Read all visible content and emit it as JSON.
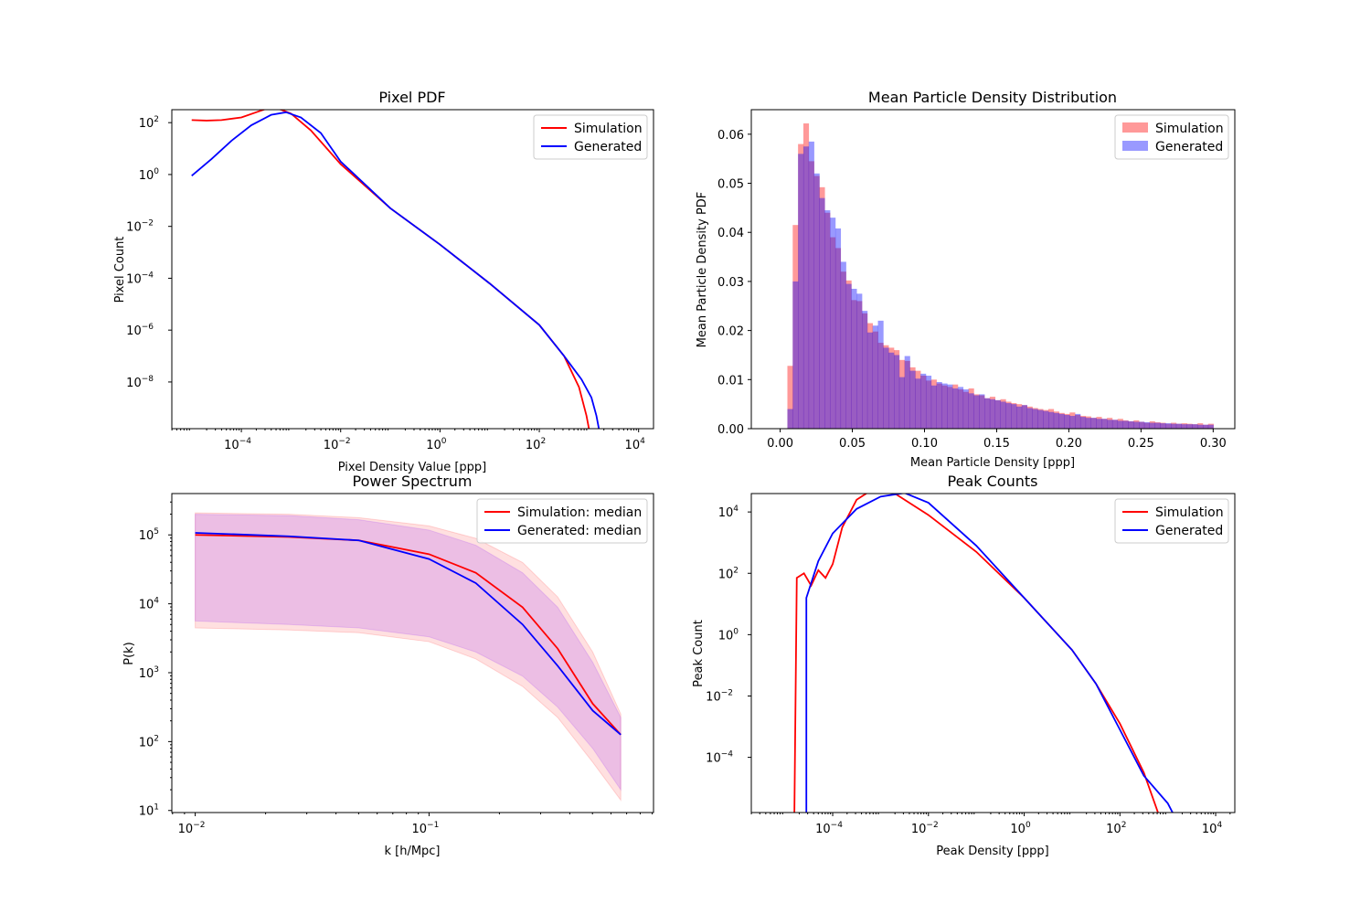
{
  "chart_data": [
    {
      "type": "line",
      "title": "Pixel PDF",
      "xlabel": "Pixel Density Value [ppp]",
      "ylabel": "Pixel Count",
      "xscale": "log",
      "yscale": "log",
      "xlim_log10": [
        -5.4,
        4.3
      ],
      "ylim_log10": [
        -9.8,
        2.5
      ],
      "xticks": [
        {
          "e": -4,
          "label": "10",
          "sup": "−4"
        },
        {
          "e": -2,
          "label": "10",
          "sup": "−2"
        },
        {
          "e": 0,
          "label": "10",
          "sup": "0"
        },
        {
          "e": 2,
          "label": "10",
          "sup": "2"
        },
        {
          "e": 4,
          "label": "10",
          "sup": "4"
        }
      ],
      "yticks": [
        {
          "e": -8,
          "label": "10",
          "sup": "−8"
        },
        {
          "e": -6,
          "label": "10",
          "sup": "−6"
        },
        {
          "e": -4,
          "label": "10",
          "sup": "−4"
        },
        {
          "e": -2,
          "label": "10",
          "sup": "−2"
        },
        {
          "e": 0,
          "label": "10",
          "sup": "0"
        },
        {
          "e": 2,
          "label": "10",
          "sup": "2"
        }
      ],
      "legend_position": "upper-right",
      "series": [
        {
          "name": "Simulation",
          "color": "#ff0000",
          "points_log10": [
            [
              -5.0,
              2.1
            ],
            [
              -4.7,
              2.08
            ],
            [
              -4.4,
              2.1
            ],
            [
              -4.0,
              2.2
            ],
            [
              -3.7,
              2.4
            ],
            [
              -3.4,
              2.6
            ],
            [
              -3.2,
              2.5
            ],
            [
              -3.0,
              2.35
            ],
            [
              -2.6,
              1.7
            ],
            [
              -2.0,
              0.4
            ],
            [
              -1.0,
              -1.3
            ],
            [
              0.0,
              -2.7
            ],
            [
              1.0,
              -4.2
            ],
            [
              2.0,
              -5.8
            ],
            [
              2.5,
              -7.0
            ],
            [
              2.8,
              -8.2
            ],
            [
              2.95,
              -9.3
            ],
            [
              3.0,
              -9.8
            ]
          ]
        },
        {
          "name": "Generated",
          "color": "#0000ff",
          "points_log10": [
            [
              -5.0,
              -0.05
            ],
            [
              -4.6,
              0.6
            ],
            [
              -4.2,
              1.3
            ],
            [
              -3.8,
              1.9
            ],
            [
              -3.4,
              2.3
            ],
            [
              -3.1,
              2.4
            ],
            [
              -2.8,
              2.2
            ],
            [
              -2.4,
              1.6
            ],
            [
              -2.0,
              0.5
            ],
            [
              -1.0,
              -1.3
            ],
            [
              0.0,
              -2.7
            ],
            [
              1.0,
              -4.2
            ],
            [
              2.0,
              -5.8
            ],
            [
              2.5,
              -7.0
            ],
            [
              2.85,
              -7.9
            ],
            [
              3.05,
              -8.6
            ],
            [
              3.15,
              -9.3
            ],
            [
              3.2,
              -9.8
            ]
          ]
        }
      ]
    },
    {
      "type": "bar",
      "title": "Mean Particle Density Distribution",
      "xlabel": "Mean Particle Density [ppp]",
      "ylabel": "Mean Particle Density PDF",
      "xlim": [
        -0.02,
        0.315
      ],
      "ylim": [
        0,
        0.065
      ],
      "xticks": [
        "0.00",
        "0.05",
        "0.10",
        "0.15",
        "0.20",
        "0.25",
        "0.30"
      ],
      "yticks": [
        "0.00",
        "0.01",
        "0.02",
        "0.03",
        "0.04",
        "0.05",
        "0.06"
      ],
      "bin_start": 0.005,
      "bin_width": 0.00369,
      "legend_position": "upper-right",
      "series": [
        {
          "name": "Simulation",
          "color": "#ff0000",
          "alpha": 0.4,
          "values": [
            0.0128,
            0.0415,
            0.058,
            0.0622,
            0.0545,
            0.0515,
            0.0492,
            0.044,
            0.039,
            0.0368,
            0.032,
            0.0302,
            0.0262,
            0.026,
            0.0235,
            0.0215,
            0.0198,
            0.0175,
            0.017,
            0.0165,
            0.016,
            0.014,
            0.0138,
            0.0125,
            0.0118,
            0.0108,
            0.0098,
            0.01,
            0.0092,
            0.0088,
            0.0085,
            0.009,
            0.008,
            0.0075,
            0.0082,
            0.007,
            0.0068,
            0.0062,
            0.0065,
            0.0058,
            0.006,
            0.0055,
            0.0052,
            0.005,
            0.0048,
            0.0045,
            0.0042,
            0.004,
            0.0038,
            0.004,
            0.0035,
            0.0032,
            0.003,
            0.0033,
            0.0028,
            0.0026,
            0.0025,
            0.0022,
            0.0024,
            0.002,
            0.0022,
            0.0018,
            0.002,
            0.0017,
            0.0015,
            0.0017,
            0.0014,
            0.0012,
            0.0015,
            0.0013,
            0.0012,
            0.001,
            0.0012,
            0.001,
            0.0011,
            0.001,
            0.0009,
            0.0011,
            0.0008,
            0.001
          ]
        },
        {
          "name": "Generated",
          "color": "#0000ff",
          "alpha": 0.4,
          "values": [
            0.004,
            0.03,
            0.056,
            0.0575,
            0.0585,
            0.052,
            0.047,
            0.0445,
            0.043,
            0.0408,
            0.034,
            0.0295,
            0.0285,
            0.0275,
            0.024,
            0.0196,
            0.021,
            0.022,
            0.0165,
            0.0155,
            0.015,
            0.0105,
            0.0148,
            0.0118,
            0.0102,
            0.0112,
            0.0108,
            0.0088,
            0.0095,
            0.0092,
            0.009,
            0.0082,
            0.0085,
            0.008,
            0.0072,
            0.0068,
            0.007,
            0.0062,
            0.006,
            0.0058,
            0.0055,
            0.0052,
            0.005,
            0.0045,
            0.0048,
            0.0042,
            0.004,
            0.0038,
            0.0036,
            0.0034,
            0.0032,
            0.003,
            0.0028,
            0.0026,
            0.003,
            0.0024,
            0.0022,
            0.0022,
            0.002,
            0.002,
            0.0018,
            0.0018,
            0.0016,
            0.0016,
            0.0015,
            0.0014,
            0.0014,
            0.0013,
            0.0012,
            0.0012,
            0.0011,
            0.0011,
            0.001,
            0.001,
            0.0009,
            0.0009,
            0.0009,
            0.0008,
            0.0008,
            0.0008
          ]
        }
      ]
    },
    {
      "type": "line",
      "title": "Power Spectrum",
      "xlabel": "k [h/Mpc]",
      "ylabel": "P(k)",
      "xscale": "log",
      "yscale": "log",
      "xlim_log10": [
        -2.1,
        -0.04
      ],
      "ylim_log10": [
        0.97,
        5.6
      ],
      "xticks": [
        {
          "e": -2,
          "label": "10",
          "sup": "−2"
        },
        {
          "e": -1,
          "label": "10",
          "sup": "−1"
        }
      ],
      "yticks": [
        {
          "e": 1,
          "label": "10",
          "sup": "1"
        },
        {
          "e": 2,
          "label": "10",
          "sup": "2"
        },
        {
          "e": 3,
          "label": "10",
          "sup": "3"
        },
        {
          "e": 4,
          "label": "10",
          "sup": "4"
        },
        {
          "e": 5,
          "label": "10",
          "sup": "5"
        }
      ],
      "legend_position": "upper-right",
      "bands": [
        {
          "color": "#ff0000",
          "alpha": 0.12,
          "upper_log10": [
            [
              -2.0,
              5.32
            ],
            [
              -1.6,
              5.3
            ],
            [
              -1.3,
              5.25
            ],
            [
              -1.0,
              5.13
            ],
            [
              -0.8,
              4.95
            ],
            [
              -0.6,
              4.6
            ],
            [
              -0.45,
              4.1
            ],
            [
              -0.3,
              3.3
            ],
            [
              -0.18,
              2.4
            ]
          ],
          "lower_log10": [
            [
              -2.0,
              3.65
            ],
            [
              -1.6,
              3.62
            ],
            [
              -1.3,
              3.58
            ],
            [
              -1.0,
              3.45
            ],
            [
              -0.8,
              3.2
            ],
            [
              -0.6,
              2.8
            ],
            [
              -0.45,
              2.35
            ],
            [
              -0.3,
              1.7
            ],
            [
              -0.18,
              1.15
            ]
          ]
        },
        {
          "color": "#8000ff",
          "alpha": 0.15,
          "upper_log10": [
            [
              -2.0,
              5.3
            ],
            [
              -1.6,
              5.28
            ],
            [
              -1.3,
              5.22
            ],
            [
              -1.0,
              5.07
            ],
            [
              -0.8,
              4.85
            ],
            [
              -0.6,
              4.45
            ],
            [
              -0.45,
              3.95
            ],
            [
              -0.3,
              3.15
            ],
            [
              -0.18,
              2.35
            ]
          ],
          "lower_log10": [
            [
              -2.0,
              3.75
            ],
            [
              -1.6,
              3.7
            ],
            [
              -1.3,
              3.65
            ],
            [
              -1.0,
              3.52
            ],
            [
              -0.8,
              3.3
            ],
            [
              -0.6,
              2.95
            ],
            [
              -0.45,
              2.5
            ],
            [
              -0.3,
              1.9
            ],
            [
              -0.18,
              1.3
            ]
          ]
        }
      ],
      "series": [
        {
          "name": "Simulation: median",
          "color": "#ff0000",
          "points_log10": [
            [
              -2.0,
              5.0
            ],
            [
              -1.6,
              4.97
            ],
            [
              -1.3,
              4.92
            ],
            [
              -1.0,
              4.72
            ],
            [
              -0.8,
              4.45
            ],
            [
              -0.6,
              3.95
            ],
            [
              -0.45,
              3.35
            ],
            [
              -0.3,
              2.55
            ],
            [
              -0.18,
              2.1
            ]
          ]
        },
        {
          "name": "Generated: median",
          "color": "#0000ff",
          "points_log10": [
            [
              -2.0,
              5.03
            ],
            [
              -1.6,
              4.98
            ],
            [
              -1.3,
              4.92
            ],
            [
              -1.0,
              4.65
            ],
            [
              -0.8,
              4.3
            ],
            [
              -0.6,
              3.7
            ],
            [
              -0.45,
              3.1
            ],
            [
              -0.3,
              2.45
            ],
            [
              -0.18,
              2.1
            ]
          ]
        }
      ]
    },
    {
      "type": "line",
      "title": "Peak Counts",
      "xlabel": "Peak Density [ppp]",
      "ylabel": "Peak Count",
      "xscale": "log",
      "yscale": "log",
      "xlim_log10": [
        -5.7,
        4.4
      ],
      "ylim_log10": [
        -5.8,
        4.6
      ],
      "xticks": [
        {
          "e": -4,
          "label": "10",
          "sup": "−4"
        },
        {
          "e": -2,
          "label": "10",
          "sup": "−2"
        },
        {
          "e": 0,
          "label": "10",
          "sup": "0"
        },
        {
          "e": 2,
          "label": "10",
          "sup": "2"
        },
        {
          "e": 4,
          "label": "10",
          "sup": "4"
        }
      ],
      "yticks": [
        {
          "e": -4,
          "label": "10",
          "sup": "−4"
        },
        {
          "e": -2,
          "label": "10",
          "sup": "−2"
        },
        {
          "e": 0,
          "label": "10",
          "sup": "0"
        },
        {
          "e": 2,
          "label": "10",
          "sup": "2"
        },
        {
          "e": 4,
          "label": "10",
          "sup": "4"
        }
      ],
      "legend_position": "upper-right",
      "series": [
        {
          "name": "Simulation",
          "color": "#ff0000",
          "points_log10": [
            [
              -4.8,
              -5.8
            ],
            [
              -4.75,
              1.85
            ],
            [
              -4.6,
              2.0
            ],
            [
              -4.45,
              1.6
            ],
            [
              -4.3,
              2.1
            ],
            [
              -4.15,
              1.85
            ],
            [
              -4.0,
              2.3
            ],
            [
              -3.8,
              3.5
            ],
            [
              -3.5,
              4.4
            ],
            [
              -3.2,
              4.7
            ],
            [
              -2.7,
              4.6
            ],
            [
              -2.0,
              3.9
            ],
            [
              -1.0,
              2.7
            ],
            [
              0.0,
              1.2
            ],
            [
              1.0,
              -0.5
            ],
            [
              1.5,
              -1.6
            ],
            [
              2.0,
              -2.9
            ],
            [
              2.5,
              -4.5
            ],
            [
              3.0,
              -6.7
            ]
          ]
        },
        {
          "name": "Generated",
          "color": "#0000ff",
          "points_log10": [
            [
              -4.55,
              -5.8
            ],
            [
              -4.55,
              1.2
            ],
            [
              -4.3,
              2.4
            ],
            [
              -4.0,
              3.3
            ],
            [
              -3.5,
              4.1
            ],
            [
              -3.0,
              4.5
            ],
            [
              -2.5,
              4.62
            ],
            [
              -2.0,
              4.3
            ],
            [
              -1.0,
              2.9
            ],
            [
              0.0,
              1.2
            ],
            [
              1.0,
              -0.5
            ],
            [
              1.5,
              -1.6
            ],
            [
              2.0,
              -3.1
            ],
            [
              2.5,
              -4.6
            ],
            [
              3.0,
              -5.5
            ],
            [
              3.3,
              -6.4
            ]
          ]
        }
      ]
    }
  ]
}
